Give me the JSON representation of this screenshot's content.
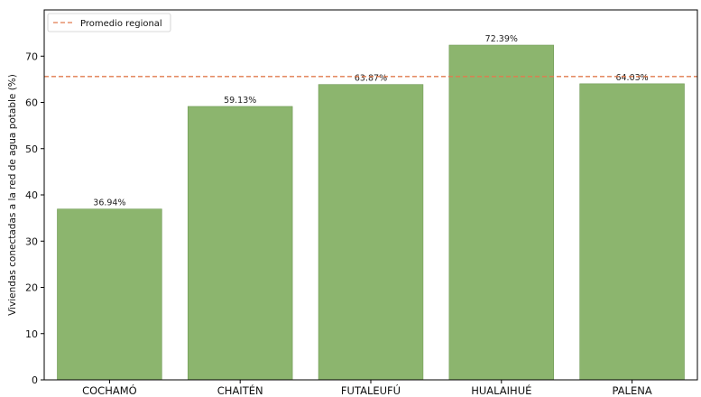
{
  "chart_data": {
    "type": "bar",
    "categories": [
      "COCHAMÓ",
      "CHAITÉN",
      "FUTALEUFÚ",
      "HUALAIHUÉ",
      "PALENA"
    ],
    "values": [
      36.94,
      59.13,
      63.87,
      72.39,
      64.03
    ],
    "value_labels": [
      "36.94%",
      "59.13%",
      "63.87%",
      "72.39%",
      "64.03%"
    ],
    "ylabel": "Viviendas conectadas a la red de agua potable (%)",
    "xlabel": "",
    "ylim": [
      0,
      80
    ],
    "yticks": [
      0,
      10,
      20,
      30,
      40,
      50,
      60,
      70
    ],
    "reference_line": {
      "label": "Promedio regional",
      "value": 65.6,
      "color": "#e07b4f",
      "style": "dashed"
    },
    "bar_color": "#8cb56e",
    "bar_edge_color": "#6f9a55",
    "legend_position": "top-left",
    "grid": false
  }
}
